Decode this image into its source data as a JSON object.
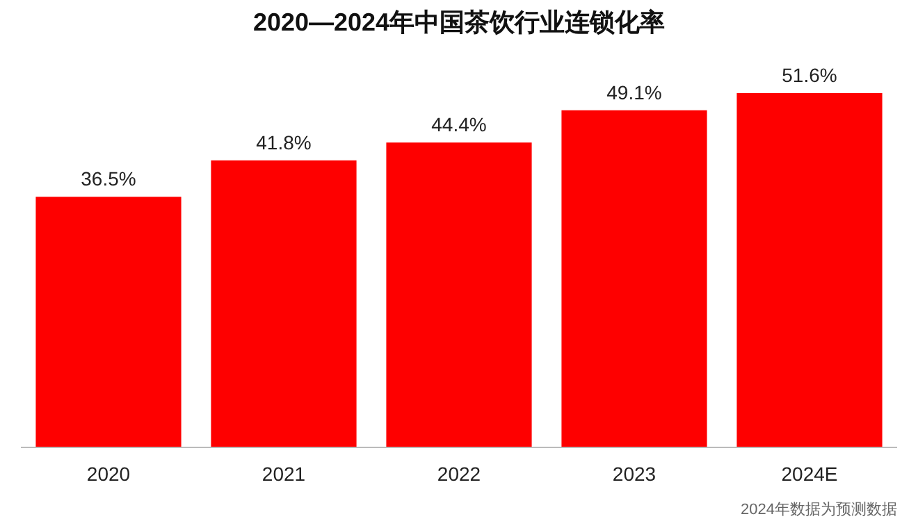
{
  "chart_data": {
    "type": "bar",
    "title": "2020—2024年中国茶饮行业连锁化率",
    "categories": [
      "2020",
      "2021",
      "2022",
      "2023",
      "2024E"
    ],
    "values": [
      36.5,
      41.8,
      44.4,
      49.1,
      51.6
    ],
    "value_labels": [
      "36.5%",
      "41.8%",
      "44.4%",
      "49.1%",
      "51.6%"
    ],
    "color": "#fe0000",
    "tick_labels": "x",
    "annotations": [
      "2024年数据为预测数据"
    ]
  }
}
